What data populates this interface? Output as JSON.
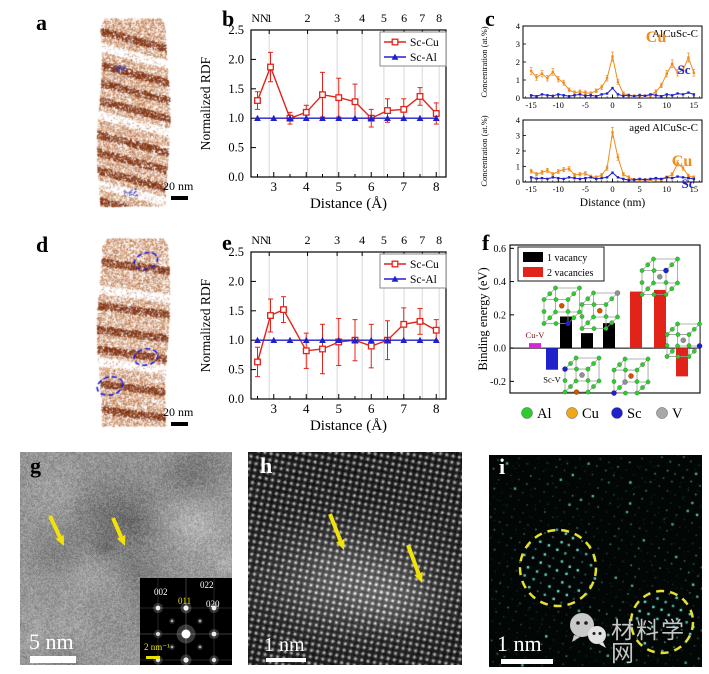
{
  "panels": {
    "a": {
      "label": "a",
      "scale_label": "20 nm"
    },
    "b": {
      "label": "b"
    },
    "c": {
      "label": "c"
    },
    "d": {
      "label": "d",
      "scale_label": "20 nm"
    },
    "e": {
      "label": "e"
    },
    "f": {
      "label": "f"
    },
    "g": {
      "label": "g",
      "scale_label": "5 nm",
      "fft": {
        "l002": "002",
        "l011": "011",
        "l022": "022",
        "l020": "020",
        "scale_label": "2 nm⁻¹"
      }
    },
    "h": {
      "label": "h",
      "scale_label": "1 nm"
    },
    "i": {
      "label": "i",
      "scale_label": "1 nm"
    }
  },
  "watermark": {
    "text": "材料学网"
  },
  "colors": {
    "sc_cu_red": "#e2231a",
    "sc_al_blue": "#2121cc",
    "cu_orange": "#f08c1e",
    "apt_brown": "#a85a28",
    "vacancy1_black": "#000000",
    "vacancy2_red": "#e2231a",
    "cuv_magenta": "#dd22dd",
    "scv_blue": "#2121cc",
    "arrow_yellow": "#f2e20a",
    "circle_yellow": "#e6e02e",
    "dot_cyan": "#39cfc9"
  },
  "chart_data": [
    {
      "id": "rdf_b",
      "type": "line",
      "panel": "b",
      "xlabel": "Distance (Å)",
      "ylabel": "Normalized RDF",
      "top_axis_label": "NN",
      "nn_positions": [
        2.86,
        4.04,
        4.95,
        5.72,
        6.39,
        7.01,
        7.57,
        8.09
      ],
      "nn_labels": [
        "1",
        "2",
        "3",
        "4",
        "5",
        "6",
        "7",
        "8"
      ],
      "xlim": [
        2.3,
        8.3
      ],
      "ylim": [
        0,
        2.5
      ],
      "xticks": [
        3,
        4,
        5,
        6,
        7,
        8
      ],
      "ytick_values": [
        0,
        0.5,
        1,
        1.5,
        2,
        2.5
      ],
      "ytick_labels": [
        "0.0",
        "0.5",
        "1.0",
        "1.5",
        "2.0",
        "2.5"
      ],
      "legend_position": "top-right",
      "series": [
        {
          "name": "Sc-Cu",
          "color": "#e2231a",
          "marker": "open-square",
          "x": [
            2.5,
            2.9,
            3.5,
            4,
            4.5,
            5,
            5.5,
            6,
            6.5,
            7,
            7.5,
            8
          ],
          "y": [
            1.3,
            1.87,
            1.0,
            1.1,
            1.4,
            1.35,
            1.28,
            1.0,
            1.13,
            1.15,
            1.37,
            1.08
          ],
          "yerr": [
            0.15,
            0.25,
            0.1,
            0.12,
            0.38,
            0.33,
            0.3,
            0.15,
            0.2,
            0.18,
            0.15,
            0.18
          ]
        },
        {
          "name": "Sc-Al",
          "color": "#2121cc",
          "marker": "triangle",
          "x": [
            2.5,
            3,
            3.5,
            4,
            4.5,
            5,
            5.5,
            6,
            6.5,
            7,
            7.5,
            8
          ],
          "y": [
            1,
            1,
            1,
            1,
            1,
            1,
            1,
            1,
            1,
            1,
            1,
            1
          ],
          "yerr": [
            0,
            0,
            0,
            0,
            0,
            0,
            0,
            0,
            0,
            0,
            0,
            0
          ]
        }
      ]
    },
    {
      "id": "conc_alcusc",
      "type": "line",
      "panel": "c",
      "title": "AlCuSc-C",
      "ylabel": "Concentration (at.%)",
      "xlim": [
        -16.5,
        16.5
      ],
      "ylim": [
        0,
        4
      ],
      "xticks": [
        -15,
        -10,
        -5,
        0,
        5,
        10,
        15
      ],
      "yticks": [
        0,
        1,
        2,
        3,
        4
      ],
      "series": [
        {
          "name": "Cu",
          "color": "#f08c1e",
          "x": [
            -15,
            -14,
            -13,
            -12,
            -11,
            -10,
            -9,
            -8,
            -7,
            -6,
            -5,
            -4,
            -3,
            -2,
            -1,
            0,
            1,
            2,
            3,
            4,
            5,
            6,
            7,
            8,
            9,
            10,
            11,
            12,
            13,
            14,
            15
          ],
          "y": [
            1.5,
            1.15,
            1.35,
            1.1,
            1.45,
            1.05,
            0.85,
            0.45,
            0.3,
            0.35,
            0.3,
            0.25,
            0.4,
            0.6,
            1.1,
            2.3,
            0.9,
            0.25,
            0.15,
            0.1,
            0.15,
            0.1,
            0.15,
            0.35,
            0.7,
            1.35,
            1.9,
            1.4,
            1.55,
            2.25,
            1.4
          ]
        },
        {
          "name": "Sc",
          "color": "#2121cc",
          "x": [
            -15,
            -14,
            -13,
            -12,
            -11,
            -10,
            -9,
            -8,
            -7,
            -6,
            -5,
            -4,
            -3,
            -2,
            -1,
            0,
            1,
            2,
            3,
            4,
            5,
            6,
            7,
            8,
            9,
            10,
            11,
            12,
            13,
            14,
            15
          ],
          "y": [
            0.15,
            0.1,
            0.2,
            0.15,
            0.12,
            0.2,
            0.15,
            0.1,
            0.15,
            0.2,
            0.12,
            0.15,
            0.1,
            0.2,
            0.25,
            0.55,
            0.2,
            0.12,
            0.15,
            0.1,
            0.15,
            0.12,
            0.2,
            0.15,
            0.1,
            0.2,
            0.15,
            0.25,
            0.2,
            0.3,
            0.2
          ]
        }
      ]
    },
    {
      "id": "conc_aged",
      "type": "line",
      "panel": "c",
      "title": "aged AlCuSc-C",
      "xlabel": "Distance (nm)",
      "ylabel": "Concentration (at.%)",
      "xlim": [
        -16.5,
        16.5
      ],
      "ylim": [
        0,
        4
      ],
      "xticks": [
        -15,
        -10,
        -5,
        0,
        5,
        10,
        15
      ],
      "yticks": [
        0,
        1,
        2,
        3,
        4
      ],
      "series": [
        {
          "name": "Cu",
          "color": "#f08c1e",
          "x": [
            -15,
            -14,
            -13,
            -12,
            -11,
            -10,
            -9,
            -8,
            -7,
            -6,
            -5,
            -4,
            -3,
            -2,
            -1,
            0,
            1,
            2,
            3,
            4,
            5,
            6,
            7,
            8,
            9,
            10,
            11,
            12,
            13,
            14,
            15
          ],
          "y": [
            0.7,
            0.5,
            0.62,
            0.75,
            0.5,
            0.68,
            0.8,
            0.85,
            0.45,
            0.5,
            0.55,
            0.35,
            0.3,
            0.45,
            0.9,
            3.2,
            1.6,
            0.5,
            0.3,
            0.15,
            0.12,
            0.15,
            0.1,
            0.2,
            0.15,
            0.3,
            0.5,
            1.2,
            0.9,
            0.4,
            0.3
          ]
        },
        {
          "name": "Sc",
          "color": "#2121cc",
          "x": [
            -15,
            -14,
            -13,
            -12,
            -11,
            -10,
            -9,
            -8,
            -7,
            -6,
            -5,
            -4,
            -3,
            -2,
            -1,
            0,
            1,
            2,
            3,
            4,
            5,
            6,
            7,
            8,
            9,
            10,
            11,
            12,
            13,
            14,
            15
          ],
          "y": [
            0.3,
            0.22,
            0.25,
            0.2,
            0.3,
            0.25,
            0.2,
            0.3,
            0.25,
            0.2,
            0.25,
            0.3,
            0.2,
            0.25,
            0.3,
            0.6,
            0.3,
            0.2,
            0.12,
            0.15,
            0.2,
            0.15,
            0.2,
            0.25,
            0.2,
            0.3,
            0.25,
            0.35,
            0.3,
            0.25,
            0.2
          ]
        }
      ]
    },
    {
      "id": "rdf_e",
      "type": "line",
      "panel": "e",
      "xlabel": "Distance (Å)",
      "ylabel": "Normalized RDF",
      "top_axis_label": "NN",
      "nn_positions": [
        2.86,
        4.04,
        4.95,
        5.72,
        6.39,
        7.01,
        7.57,
        8.09
      ],
      "nn_labels": [
        "1",
        "2",
        "3",
        "4",
        "5",
        "6",
        "7",
        "8"
      ],
      "xlim": [
        2.3,
        8.3
      ],
      "ylim": [
        0,
        2.5
      ],
      "xticks": [
        3,
        4,
        5,
        6,
        7,
        8
      ],
      "ytick_values": [
        0,
        0.5,
        1,
        1.5,
        2,
        2.5
      ],
      "ytick_labels": [
        "0.0",
        "0.5",
        "1.0",
        "1.5",
        "2.0",
        "2.5"
      ],
      "legend_position": "top-right",
      "series": [
        {
          "name": "Sc-Cu",
          "color": "#e2231a",
          "marker": "open-square",
          "x": [
            2.5,
            2.9,
            3.3,
            4,
            4.5,
            5,
            5.5,
            6,
            6.5,
            7,
            7.5,
            8
          ],
          "y": [
            0.63,
            1.42,
            1.52,
            0.82,
            0.85,
            0.97,
            1.0,
            0.9,
            1.0,
            1.27,
            1.32,
            1.17
          ],
          "yerr": [
            0.25,
            0.28,
            0.22,
            0.3,
            0.42,
            0.4,
            0.35,
            0.37,
            0.33,
            0.28,
            0.22,
            0.18
          ]
        },
        {
          "name": "Sc-Al",
          "color": "#2121cc",
          "marker": "triangle",
          "x": [
            2.5,
            3,
            3.5,
            4,
            4.5,
            5,
            5.5,
            6,
            6.5,
            7,
            7.5,
            8
          ],
          "y": [
            1,
            1,
            1,
            1,
            1,
            1,
            1,
            1,
            1,
            1,
            1,
            1
          ],
          "yerr": [
            0,
            0,
            0,
            0,
            0,
            0,
            0,
            0,
            0,
            0,
            0,
            0
          ]
        }
      ]
    },
    {
      "id": "binding",
      "type": "bar",
      "panel": "f",
      "ylabel": "Binding energy (eV)",
      "ylim": [
        -0.27,
        0.62
      ],
      "ytick_values": [
        -0.2,
        0,
        0.2,
        0.4,
        0.6
      ],
      "ytick_labels": [
        "-0.2",
        "0.0",
        "0.2",
        "0.4",
        "0.6"
      ],
      "legend": [
        {
          "label": "1 vacancy",
          "color": "#000000"
        },
        {
          "label": "2 vacancies",
          "color": "#e2231a"
        }
      ],
      "bars": [
        {
          "label": "Cu-V",
          "value": 0.03,
          "color": "#dd22dd"
        },
        {
          "label": "Sc-V",
          "value": -0.13,
          "color": "#2121cc"
        },
        {
          "label": "",
          "value": 0.19,
          "color": "#000000"
        },
        {
          "label": "",
          "value": 0.09,
          "color": "#000000"
        },
        {
          "label": "",
          "value": 0.15,
          "color": "#000000"
        },
        {
          "label": "",
          "value": 0.34,
          "color": "#e2231a"
        },
        {
          "label": "",
          "value": 0.35,
          "color": "#e2231a"
        },
        {
          "label": "",
          "value": -0.17,
          "color": "#e2231a"
        }
      ],
      "atom_legend": [
        {
          "label": "Al",
          "color": "#2ecc2e"
        },
        {
          "label": "Cu",
          "color": "#f0a818"
        },
        {
          "label": "Sc",
          "color": "#2121cc"
        },
        {
          "label": "V",
          "color": "#a8a8a8"
        }
      ]
    }
  ]
}
